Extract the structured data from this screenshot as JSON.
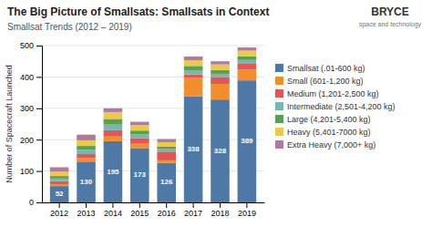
{
  "chart_data": {
    "type": "bar",
    "stacked": true,
    "title": "The Big Picture of Smallsats: Smallsats in Context",
    "subtitle": "Smallsat Trends (2012 – 2019)",
    "y_label": "Number of Spacecraft Launched",
    "annotations": [
      "BRYCE",
      "space and technology"
    ],
    "categories": [
      "2012",
      "2013",
      "2014",
      "2015",
      "2016",
      "2017",
      "2018",
      "2019"
    ],
    "series": [
      {
        "name": "Smallsat (.01-600 kg)",
        "values": [
          52,
          130,
          195,
          173,
          126,
          338,
          328,
          389
        ],
        "data_labels": true
      },
      {
        "name": "Small (601-1,200 kg)",
        "values": [
          6,
          12,
          15,
          14,
          8,
          60,
          50,
          35
        ]
      },
      {
        "name": "Medium (1,201-2,500 kg)",
        "values": [
          10,
          12,
          20,
          18,
          28,
          10,
          22,
          18
        ]
      },
      {
        "name": "Intermediate (2,501-4,200 kg)",
        "values": [
          8,
          14,
          18,
          12,
          8,
          12,
          10,
          12
        ]
      },
      {
        "name": "Large (4,201-5,400 kg)",
        "values": [
          8,
          12,
          18,
          12,
          8,
          15,
          12,
          12
        ]
      },
      {
        "name": "Heavy (5,401-7000 kg)",
        "values": [
          14,
          18,
          22,
          18,
          14,
          18,
          18,
          18
        ]
      },
      {
        "name": "Extra Heavy (7,000+ kg)",
        "values": [
          14,
          18,
          12,
          10,
          10,
          12,
          10,
          10
        ]
      }
    ],
    "ylim": [
      0,
      500
    ],
    "yticks": [
      0,
      100,
      200,
      300,
      400,
      500
    ],
    "grid": true,
    "legend": "right"
  }
}
